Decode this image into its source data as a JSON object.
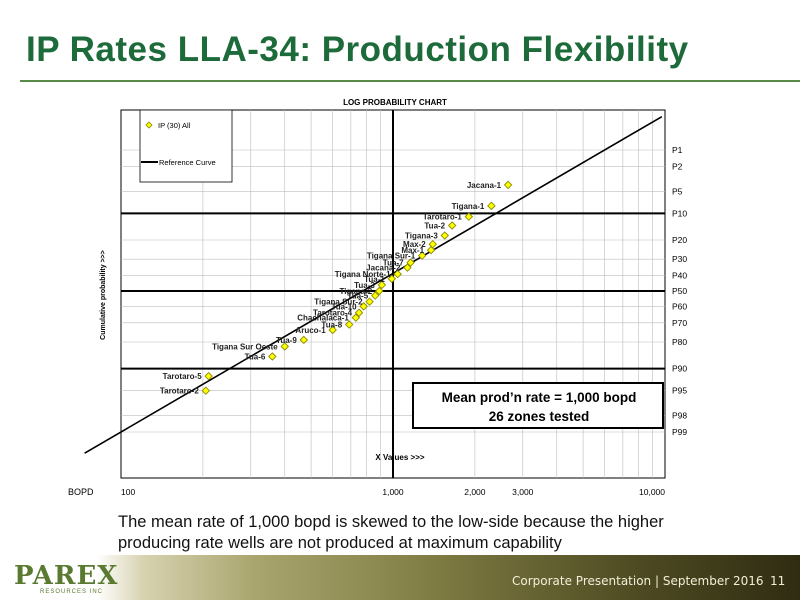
{
  "slide_title": "IP Rates LLA-34: Production Flexibility",
  "caption": "The mean rate of 1,000 bopd is skewed to the low-side because the higher producing rate wells are not produced at maximum capability",
  "footer": {
    "logo_text": "PAREX",
    "logo_subtext": "RESOURCES INC",
    "presentation": "Corporate Presentation | September 2016",
    "page_number": "11"
  },
  "colors": {
    "title": "#1d6b3a",
    "marker_fill": "#ffff00",
    "marker_stroke": "#8a8a00"
  },
  "chart_data": {
    "type": "scatter",
    "title": "LOG PROBABILITY CHART",
    "xlabel": "X Values >>>",
    "ylabel": "Cumulative probability >>>",
    "x_axis_label": "BOPD",
    "x_scale": "log",
    "y_scale": "probability",
    "xlim": [
      100,
      10000
    ],
    "x_ticks": [
      {
        "value": 100,
        "label": "100"
      },
      {
        "value": 1000,
        "label": "1,000"
      },
      {
        "value": 2000,
        "label": "2,000"
      },
      {
        "value": 3000,
        "label": "3,000"
      },
      {
        "value": 10000,
        "label": "10,000"
      }
    ],
    "y_ticks": [
      "P1",
      "P2",
      "P5",
      "P10",
      "P20",
      "P30",
      "P40",
      "P50",
      "P60",
      "P70",
      "P80",
      "P90",
      "P95",
      "P98",
      "P99"
    ],
    "legend": [
      {
        "label": "IP (30) All",
        "kind": "marker"
      },
      {
        "label": "Reference Curve",
        "kind": "line"
      }
    ],
    "legend_position": "top-left",
    "annotation": {
      "line1": "Mean prod’n rate = 1,000 bopd",
      "line2": "26 zones tested"
    },
    "reference_lines": {
      "vertical_x": 1000,
      "horizontal_p": [
        10,
        50,
        90
      ]
    },
    "series": [
      {
        "name": "IP (30) All",
        "points": [
          {
            "label": "Jacana-1",
            "x": 2650,
            "p": 4
          },
          {
            "label": "Tigana-1",
            "x": 2300,
            "p": 8
          },
          {
            "label": "Tarotaro-1",
            "x": 1900,
            "p": 11
          },
          {
            "label": "Tua-2",
            "x": 1650,
            "p": 14
          },
          {
            "label": "Tigana-3",
            "x": 1550,
            "p": 18
          },
          {
            "label": "Max-2",
            "x": 1400,
            "p": 22
          },
          {
            "label": "Max-1",
            "x": 1380,
            "p": 25
          },
          {
            "label": "Tigana Sur-1",
            "x": 1280,
            "p": 28
          },
          {
            "label": "Tua-7",
            "x": 1160,
            "p": 32
          },
          {
            "label": "Jacana-2",
            "x": 1130,
            "p": 35
          },
          {
            "label": "Tigana Norte-1",
            "x": 1040,
            "p": 39
          },
          {
            "label": "Tua-1",
            "x": 990,
            "p": 42
          },
          {
            "label": "Tua-3",
            "x": 910,
            "p": 46
          },
          {
            "label": "Tigana-2",
            "x": 890,
            "p": 50
          },
          {
            "label": "Tua-5",
            "x": 860,
            "p": 53
          },
          {
            "label": "Tigana Sur-2",
            "x": 820,
            "p": 57
          },
          {
            "label": "Tua-10",
            "x": 780,
            "p": 60
          },
          {
            "label": "Tarotaro-4",
            "x": 750,
            "p": 64
          },
          {
            "label": "Chachalaca-1",
            "x": 730,
            "p": 67
          },
          {
            "label": "Tua-8",
            "x": 690,
            "p": 71
          },
          {
            "label": "Aruco-1",
            "x": 600,
            "p": 74
          },
          {
            "label": "Tua-9",
            "x": 470,
            "p": 79
          },
          {
            "label": "Tigana Sur Oeste",
            "x": 400,
            "p": 82
          },
          {
            "label": "Tua-6",
            "x": 360,
            "p": 86
          },
          {
            "label": "Tarotaro-5",
            "x": 210,
            "p": 92
          },
          {
            "label": "Tarotaro-2",
            "x": 205,
            "p": 95
          }
        ]
      },
      {
        "name": "Reference Curve",
        "line": {
          "x_at_p99": 100,
          "x_at_p1": 6000
        }
      }
    ]
  }
}
